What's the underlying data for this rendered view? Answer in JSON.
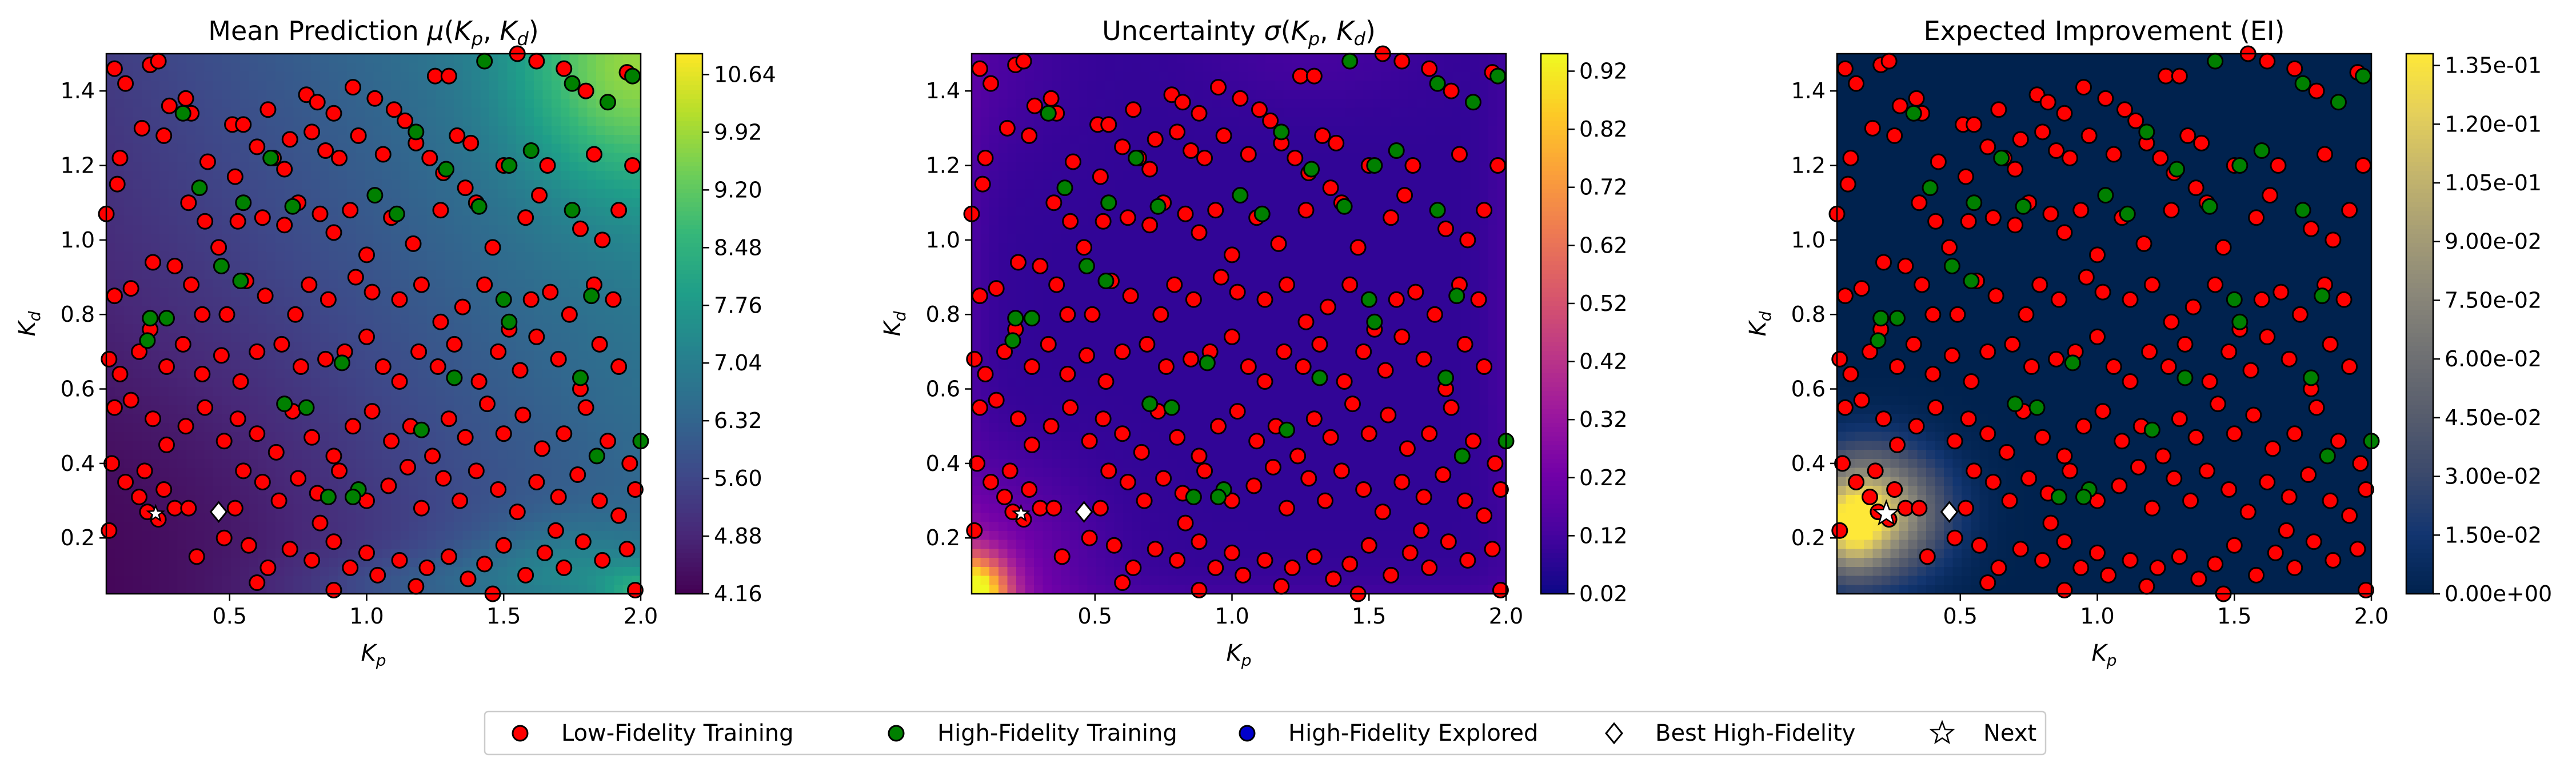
{
  "chart_data": [
    {
      "type": "heatmap",
      "title": "Mean Prediction μ(Kp, Kd)",
      "title_parts": [
        "Mean Prediction ",
        "μ",
        "(",
        "K",
        "p",
        ", ",
        "K",
        "d",
        ")"
      ],
      "xlabel": "Kp",
      "ylabel": "Kd",
      "xlim": [
        0.05,
        2.0
      ],
      "ylim": [
        0.05,
        1.5
      ],
      "xticks": [
        "0.5",
        "1.0",
        "1.5",
        "2.0"
      ],
      "yticks": [
        "0.2",
        "0.4",
        "0.6",
        "0.8",
        "1.0",
        "1.2",
        "1.4"
      ],
      "colormap": "viridis",
      "colorbar_range": [
        4.16,
        10.9
      ],
      "colorbar_ticks": [
        "4.16",
        "4.88",
        "5.60",
        "6.32",
        "7.04",
        "7.76",
        "8.48",
        "9.20",
        "9.92",
        "10.64"
      ]
    },
    {
      "type": "heatmap",
      "title": "Uncertainty σ(Kp, Kd)",
      "title_parts": [
        "Uncertainty ",
        "σ",
        "(",
        "K",
        "p",
        ", ",
        "K",
        "d",
        ")"
      ],
      "xlabel": "Kp",
      "ylabel": "Kd",
      "xlim": [
        0.05,
        2.0
      ],
      "ylim": [
        0.05,
        1.5
      ],
      "xticks": [
        "0.5",
        "1.0",
        "1.5",
        "2.0"
      ],
      "yticks": [
        "0.2",
        "0.4",
        "0.6",
        "0.8",
        "1.0",
        "1.2",
        "1.4"
      ],
      "colormap": "plasma",
      "colorbar_range": [
        0.02,
        0.95
      ],
      "colorbar_ticks": [
        "0.02",
        "0.12",
        "0.22",
        "0.32",
        "0.42",
        "0.52",
        "0.62",
        "0.72",
        "0.82",
        "0.92"
      ]
    },
    {
      "type": "heatmap",
      "title": "Expected Improvement (EI)",
      "title_parts": [
        "Expected Improvement (EI)"
      ],
      "xlabel": "Kp",
      "ylabel": "Kd",
      "xlim": [
        0.05,
        2.0
      ],
      "ylim": [
        0.05,
        1.5
      ],
      "xticks": [
        "0.5",
        "1.0",
        "1.5",
        "2.0"
      ],
      "yticks": [
        "0.2",
        "0.4",
        "0.6",
        "0.8",
        "1.0",
        "1.2",
        "1.4"
      ],
      "colormap": "cividis",
      "colorbar_range": [
        0.0,
        0.138
      ],
      "colorbar_ticks": [
        "0.00e+00",
        "1.50e-02",
        "3.00e-02",
        "4.50e-02",
        "6.00e-02",
        "7.50e-02",
        "9.00e-02",
        "1.05e-01",
        "1.20e-01",
        "1.35e-01"
      ]
    }
  ],
  "points": {
    "best_high_fidelity": [
      0.46,
      0.27
    ],
    "next": [
      0.23,
      0.265
    ],
    "low_fidelity": [
      [
        0.08,
        1.46
      ],
      [
        0.12,
        1.42
      ],
      [
        0.21,
        1.47
      ],
      [
        0.24,
        1.48
      ],
      [
        0.34,
        1.38
      ],
      [
        0.28,
        1.36
      ],
      [
        0.36,
        1.34
      ],
      [
        0.18,
        1.3
      ],
      [
        0.26,
        1.28
      ],
      [
        0.1,
        1.22
      ],
      [
        0.09,
        1.15
      ],
      [
        0.05,
        1.07
      ],
      [
        0.51,
        1.31
      ],
      [
        0.55,
        1.31
      ],
      [
        0.64,
        1.35
      ],
      [
        0.72,
        1.27
      ],
      [
        0.78,
        1.39
      ],
      [
        0.82,
        1.37
      ],
      [
        0.88,
        1.34
      ],
      [
        0.95,
        1.41
      ],
      [
        1.03,
        1.38
      ],
      [
        1.1,
        1.35
      ],
      [
        1.25,
        1.44
      ],
      [
        1.3,
        1.44
      ],
      [
        1.55,
        1.5
      ],
      [
        1.62,
        1.48
      ],
      [
        1.72,
        1.46
      ],
      [
        1.8,
        1.4
      ],
      [
        1.95,
        1.45
      ],
      [
        0.42,
        1.21
      ],
      [
        0.52,
        1.17
      ],
      [
        0.6,
        1.25
      ],
      [
        0.66,
        1.22
      ],
      [
        0.7,
        1.19
      ],
      [
        0.8,
        1.29
      ],
      [
        0.85,
        1.24
      ],
      [
        0.9,
        1.22
      ],
      [
        0.97,
        1.28
      ],
      [
        1.06,
        1.23
      ],
      [
        1.14,
        1.32
      ],
      [
        1.18,
        1.26
      ],
      [
        1.23,
        1.22
      ],
      [
        1.28,
        1.18
      ],
      [
        1.33,
        1.28
      ],
      [
        1.38,
        1.26
      ],
      [
        1.5,
        1.2
      ],
      [
        1.66,
        1.2
      ],
      [
        1.83,
        1.23
      ],
      [
        1.97,
        1.2
      ],
      [
        0.35,
        1.1
      ],
      [
        0.41,
        1.05
      ],
      [
        0.46,
        0.98
      ],
      [
        0.53,
        1.05
      ],
      [
        0.62,
        1.06
      ],
      [
        0.7,
        1.04
      ],
      [
        0.75,
        1.1
      ],
      [
        0.83,
        1.07
      ],
      [
        0.88,
        1.02
      ],
      [
        0.94,
        1.08
      ],
      [
        1.0,
        0.96
      ],
      [
        1.09,
        1.06
      ],
      [
        1.17,
        0.99
      ],
      [
        1.27,
        1.08
      ],
      [
        1.36,
        1.14
      ],
      [
        1.4,
        1.1
      ],
      [
        1.46,
        0.98
      ],
      [
        1.58,
        1.06
      ],
      [
        1.63,
        1.12
      ],
      [
        1.78,
        1.03
      ],
      [
        1.86,
        1.0
      ],
      [
        1.92,
        1.08
      ],
      [
        0.08,
        0.85
      ],
      [
        0.14,
        0.87
      ],
      [
        0.22,
        0.94
      ],
      [
        0.3,
        0.93
      ],
      [
        0.36,
        0.88
      ],
      [
        0.4,
        0.8
      ],
      [
        0.49,
        0.8
      ],
      [
        0.56,
        0.89
      ],
      [
        0.63,
        0.85
      ],
      [
        0.74,
        0.8
      ],
      [
        0.79,
        0.88
      ],
      [
        0.86,
        0.84
      ],
      [
        0.96,
        0.9
      ],
      [
        1.02,
        0.86
      ],
      [
        1.12,
        0.84
      ],
      [
        1.2,
        0.88
      ],
      [
        1.27,
        0.78
      ],
      [
        1.35,
        0.82
      ],
      [
        1.43,
        0.88
      ],
      [
        1.52,
        0.76
      ],
      [
        1.6,
        0.84
      ],
      [
        1.67,
        0.86
      ],
      [
        1.74,
        0.8
      ],
      [
        1.83,
        0.88
      ],
      [
        1.9,
        0.84
      ],
      [
        0.06,
        0.68
      ],
      [
        0.1,
        0.64
      ],
      [
        0.17,
        0.7
      ],
      [
        0.21,
        0.76
      ],
      [
        0.27,
        0.66
      ],
      [
        0.33,
        0.72
      ],
      [
        0.4,
        0.64
      ],
      [
        0.47,
        0.69
      ],
      [
        0.54,
        0.62
      ],
      [
        0.6,
        0.7
      ],
      [
        0.69,
        0.72
      ],
      [
        0.76,
        0.66
      ],
      [
        0.85,
        0.68
      ],
      [
        0.92,
        0.7
      ],
      [
        1.0,
        0.74
      ],
      [
        1.06,
        0.66
      ],
      [
        1.12,
        0.62
      ],
      [
        1.19,
        0.7
      ],
      [
        1.26,
        0.66
      ],
      [
        1.32,
        0.72
      ],
      [
        1.41,
        0.62
      ],
      [
        1.48,
        0.7
      ],
      [
        1.56,
        0.65
      ],
      [
        1.62,
        0.74
      ],
      [
        1.7,
        0.68
      ],
      [
        1.78,
        0.6
      ],
      [
        1.85,
        0.72
      ],
      [
        1.92,
        0.66
      ],
      [
        0.08,
        0.55
      ],
      [
        0.14,
        0.57
      ],
      [
        0.22,
        0.52
      ],
      [
        0.27,
        0.45
      ],
      [
        0.34,
        0.5
      ],
      [
        0.41,
        0.55
      ],
      [
        0.48,
        0.46
      ],
      [
        0.53,
        0.52
      ],
      [
        0.6,
        0.48
      ],
      [
        0.67,
        0.43
      ],
      [
        0.73,
        0.54
      ],
      [
        0.8,
        0.47
      ],
      [
        0.88,
        0.42
      ],
      [
        0.95,
        0.5
      ],
      [
        1.02,
        0.54
      ],
      [
        1.09,
        0.46
      ],
      [
        1.16,
        0.5
      ],
      [
        1.24,
        0.42
      ],
      [
        1.3,
        0.52
      ],
      [
        1.36,
        0.47
      ],
      [
        1.44,
        0.56
      ],
      [
        1.5,
        0.48
      ],
      [
        1.57,
        0.53
      ],
      [
        1.64,
        0.44
      ],
      [
        1.72,
        0.48
      ],
      [
        1.8,
        0.55
      ],
      [
        1.88,
        0.46
      ],
      [
        1.96,
        0.4
      ],
      [
        0.07,
        0.4
      ],
      [
        0.12,
        0.35
      ],
      [
        0.19,
        0.38
      ],
      [
        0.26,
        0.33
      ],
      [
        0.3,
        0.28
      ],
      [
        0.35,
        0.28
      ],
      [
        0.17,
        0.31
      ],
      [
        0.2,
        0.27
      ],
      [
        0.24,
        0.25
      ],
      [
        0.06,
        0.22
      ],
      [
        0.55,
        0.38
      ],
      [
        0.62,
        0.35
      ],
      [
        0.68,
        0.3
      ],
      [
        0.75,
        0.36
      ],
      [
        0.82,
        0.32
      ],
      [
        0.9,
        0.38
      ],
      [
        1.0,
        0.3
      ],
      [
        1.08,
        0.34
      ],
      [
        1.15,
        0.39
      ],
      [
        1.2,
        0.28
      ],
      [
        1.28,
        0.36
      ],
      [
        1.34,
        0.3
      ],
      [
        1.4,
        0.38
      ],
      [
        1.48,
        0.33
      ],
      [
        1.55,
        0.27
      ],
      [
        1.62,
        0.35
      ],
      [
        1.7,
        0.31
      ],
      [
        1.77,
        0.37
      ],
      [
        1.85,
        0.3
      ],
      [
        1.92,
        0.26
      ],
      [
        1.98,
        0.33
      ],
      [
        0.38,
        0.15
      ],
      [
        0.48,
        0.2
      ],
      [
        0.57,
        0.18
      ],
      [
        0.64,
        0.12
      ],
      [
        0.72,
        0.17
      ],
      [
        0.8,
        0.14
      ],
      [
        0.88,
        0.19
      ],
      [
        0.94,
        0.12
      ],
      [
        1.0,
        0.16
      ],
      [
        1.04,
        0.1
      ],
      [
        1.12,
        0.14
      ],
      [
        1.18,
        0.07
      ],
      [
        1.22,
        0.12
      ],
      [
        1.3,
        0.15
      ],
      [
        1.37,
        0.09
      ],
      [
        1.43,
        0.13
      ],
      [
        1.5,
        0.18
      ],
      [
        1.58,
        0.1
      ],
      [
        1.65,
        0.16
      ],
      [
        1.72,
        0.12
      ],
      [
        1.79,
        0.19
      ],
      [
        1.86,
        0.14
      ],
      [
        1.95,
        0.17
      ],
      [
        0.6,
        0.08
      ],
      [
        0.88,
        0.06
      ],
      [
        1.46,
        0.05
      ],
      [
        1.98,
        0.06
      ],
      [
        0.52,
        0.28
      ],
      [
        0.83,
        0.24
      ],
      [
        1.69,
        0.22
      ]
    ],
    "high_fidelity": [
      [
        0.33,
        1.34
      ],
      [
        1.43,
        1.48
      ],
      [
        1.75,
        1.42
      ],
      [
        1.97,
        1.44
      ],
      [
        1.88,
        1.37
      ],
      [
        1.18,
        1.29
      ],
      [
        0.65,
        1.22
      ],
      [
        0.39,
        1.14
      ],
      [
        1.6,
        1.24
      ],
      [
        1.29,
        1.19
      ],
      [
        1.52,
        1.2
      ],
      [
        0.55,
        1.1
      ],
      [
        0.73,
        1.09
      ],
      [
        1.03,
        1.12
      ],
      [
        1.41,
        1.09
      ],
      [
        1.11,
        1.07
      ],
      [
        1.75,
        1.08
      ],
      [
        0.47,
        0.93
      ],
      [
        0.54,
        0.89
      ],
      [
        0.21,
        0.79
      ],
      [
        0.27,
        0.79
      ],
      [
        0.2,
        0.73
      ],
      [
        1.5,
        0.84
      ],
      [
        1.52,
        0.78
      ],
      [
        1.82,
        0.85
      ],
      [
        0.91,
        0.67
      ],
      [
        1.32,
        0.63
      ],
      [
        1.78,
        0.63
      ],
      [
        0.7,
        0.56
      ],
      [
        0.78,
        0.55
      ],
      [
        1.2,
        0.49
      ],
      [
        0.97,
        0.33
      ],
      [
        0.86,
        0.31
      ],
      [
        0.95,
        0.31
      ],
      [
        1.84,
        0.42
      ],
      [
        2.0,
        0.46
      ]
    ],
    "high_fidelity_explored": []
  },
  "legend": {
    "items": [
      "Low-Fidelity Training",
      "High-Fidelity Training",
      "High-Fidelity Explored",
      "Best High-Fidelity",
      "Next"
    ]
  },
  "colors": {
    "low_fidelity": "#ff0000",
    "high_fidelity": "#008000",
    "explored": "#0000cd",
    "marker_edge": "#000000",
    "best_fill": "#ffffff",
    "next_fill": "#ffffff"
  }
}
